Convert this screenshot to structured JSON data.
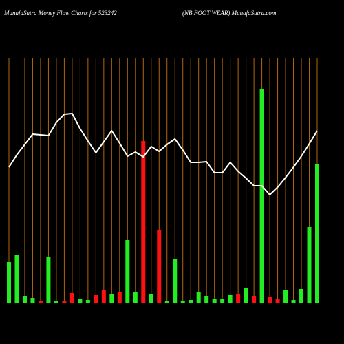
{
  "chart_data": {
    "type": "bar",
    "title": "MunafaSutra  Money Flow  Charts for 523242",
    "subtitle": "(NB FOOT WEAR) MunafaSutra.com",
    "ylim": [
      0,
      355
    ],
    "grid_color": "#b3660a",
    "series": [
      {
        "type": "bar",
        "values": [
          59,
          69,
          10,
          7,
          3,
          67,
          3,
          3,
          14,
          6,
          4,
          11,
          19,
          13,
          16,
          91,
          16,
          235,
          12,
          106,
          3,
          64,
          3,
          4,
          15,
          10,
          6,
          5,
          11,
          13,
          22,
          10,
          311,
          9,
          6,
          19,
          4,
          20,
          110,
          201
        ],
        "colors": [
          "#22ee22",
          "#22ee22",
          "#22ee22",
          "#22ee22",
          "#ff1111",
          "#22ee22",
          "#22ee22",
          "#ff1111",
          "#ff1111",
          "#22ee22",
          "#22ee22",
          "#ff1111",
          "#ff1111",
          "#22ee22",
          "#ff1111",
          "#22ee22",
          "#22ee22",
          "#ff1111",
          "#22ee22",
          "#ff1111",
          "#22ee22",
          "#22ee22",
          "#22ee22",
          "#22ee22",
          "#22ee22",
          "#22ee22",
          "#22ee22",
          "#22ee22",
          "#22ee22",
          "#ff1111",
          "#22ee22",
          "#ff1111",
          "#22ee22",
          "#ff1111",
          "#ff1111",
          "#22ee22",
          "#22ee22",
          "#22ee22",
          "#22ee22",
          "#22ee22"
        ]
      },
      {
        "type": "line",
        "color": "#ffffff",
        "values": [
          197,
          215,
          230,
          245,
          244,
          243,
          262,
          274,
          275,
          253,
          235,
          218,
          234,
          250,
          232,
          213,
          219,
          212,
          227,
          220,
          230,
          238,
          222,
          204,
          204,
          205,
          189,
          189,
          204,
          191,
          181,
          170,
          170,
          157,
          168,
          182,
          197,
          213,
          231,
          250
        ]
      }
    ]
  }
}
